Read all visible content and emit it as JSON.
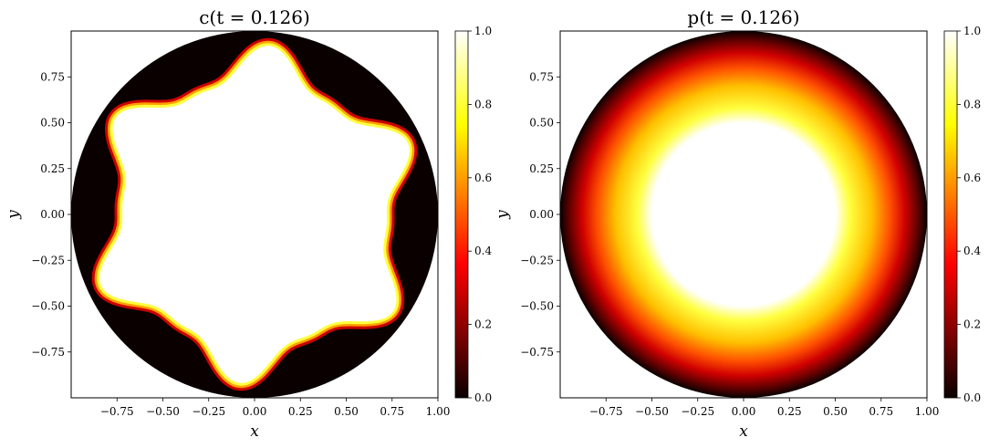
{
  "chart_data": [
    {
      "type": "heatmap",
      "title": "c(t = 0.126)",
      "xlabel": "x",
      "ylabel": "y",
      "xlim": [
        -1.0,
        1.0
      ],
      "ylim": [
        -1.0,
        1.0
      ],
      "x_ticks": [
        -0.75,
        -0.5,
        -0.25,
        0.0,
        0.25,
        0.5,
        0.75,
        1.0
      ],
      "x_tick_labels": [
        "−0.75",
        "−0.50",
        "−0.25",
        "0.00",
        "0.25",
        "0.50",
        "0.75",
        "1.00"
      ],
      "y_ticks": [
        0.75,
        0.5,
        0.25,
        0.0,
        -0.25,
        -0.5,
        -0.75
      ],
      "y_tick_labels": [
        "0.75",
        "0.50",
        "0.25",
        "0.00",
        "−0.25",
        "−0.50",
        "−0.75"
      ],
      "colormap": "hot",
      "colorbar": {
        "range": [
          0.0,
          1.0
        ],
        "ticks": [
          0.0,
          0.2,
          0.4,
          0.6,
          0.8,
          1.0
        ],
        "tick_labels": [
          "0.0",
          "0.2",
          "0.4",
          "0.6",
          "0.8",
          "1.0"
        ]
      },
      "domain": "unit disk",
      "field": {
        "description_values": "c ≈ 1 inside a fingered interior region, c ≈ 0 near the boundary",
        "interface_radius_base": 0.8,
        "finger_count": 6,
        "finger_amplitude": 0.1,
        "finger_phase_deg": 85
      }
    },
    {
      "type": "heatmap",
      "title": "p(t = 0.126)",
      "xlabel": "x",
      "ylabel": "y",
      "xlim": [
        -1.0,
        1.0
      ],
      "ylim": [
        -1.0,
        1.0
      ],
      "x_ticks": [
        -0.75,
        -0.5,
        -0.25,
        0.0,
        0.25,
        0.5,
        0.75,
        1.0
      ],
      "x_tick_labels": [
        "−0.75",
        "−0.50",
        "−0.25",
        "0.00",
        "0.25",
        "0.50",
        "0.75",
        "1.00"
      ],
      "y_ticks": [
        0.75,
        0.5,
        0.25,
        0.0,
        -0.25,
        -0.5,
        -0.75
      ],
      "y_tick_labels": [
        "0.75",
        "0.50",
        "0.25",
        "0.00",
        "−0.25",
        "−0.50",
        "−0.75"
      ],
      "colormap": "hot",
      "colorbar": {
        "range": [
          0.0,
          1.0
        ],
        "ticks": [
          0.0,
          0.2,
          0.4,
          0.6,
          0.8,
          1.0
        ],
        "tick_labels": [
          "0.0",
          "0.2",
          "0.4",
          "0.6",
          "0.8",
          "1.0"
        ]
      },
      "domain": "unit disk",
      "field": {
        "description_values": "p = 1 for r < 0.5, decreasing to 0 at r = 1",
        "plateau_radius": 0.5,
        "edge_value": 0.0,
        "center_value": 1.0
      }
    }
  ],
  "colors": {
    "hot_colormap": [
      "#0a0000",
      "#ff0000",
      "#ffff00",
      "#ffffff"
    ]
  }
}
